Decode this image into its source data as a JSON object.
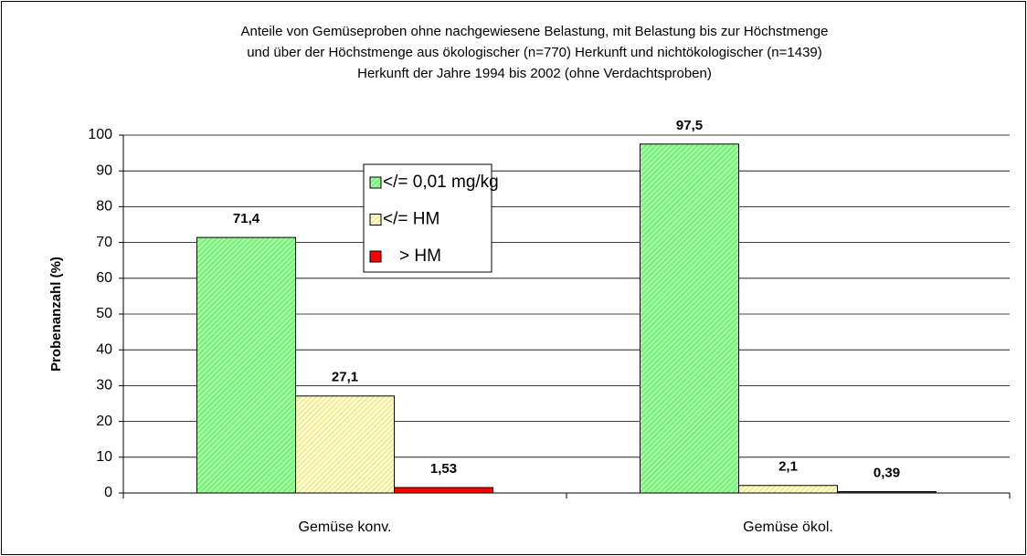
{
  "chart_data": {
    "type": "bar",
    "title": [
      "Anteile von Gemüseproben ohne nachgewiesene Belastung, mit Belastung bis zur Höchstmenge",
      "und über der Höchstmenge aus ökologischer (n=770) Herkunft und nichtökologischer (n=1439)",
      "Herkunft der Jahre 1994 bis 2002 (ohne Verdachtsproben)"
    ],
    "y_label": "Probenanzahl (%)",
    "categories": [
      "Gemüse konv.",
      "Gemüse ökol."
    ],
    "series": [
      {
        "name": "</= 0,01 mg/kg",
        "color": "#99ff99",
        "values": [
          71.4,
          97.5
        ],
        "value_labels": [
          "71,4",
          "97,5"
        ]
      },
      {
        "name": "</= HM",
        "color": "#ffff99",
        "values": [
          27.1,
          2.1
        ],
        "value_labels": [
          "27,1",
          "2,1"
        ]
      },
      {
        "name": "> HM",
        "color": "#ff0000",
        "values": [
          1.53,
          0.39
        ],
        "value_labels": [
          "1,53",
          "0,39"
        ]
      }
    ],
    "ylim": [
      0,
      100
    ],
    "yticks": [
      0,
      10,
      20,
      30,
      40,
      50,
      60,
      70,
      80,
      90,
      100
    ],
    "grid": true
  }
}
